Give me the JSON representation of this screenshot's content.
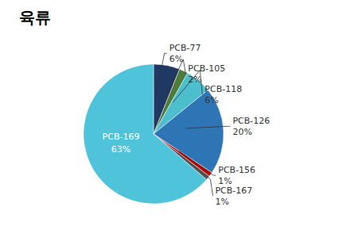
{
  "chart_data": {
    "type": "pie",
    "title": "육류",
    "categories": [
      "PCB-77",
      "PCB-105",
      "PCB-118",
      "PCB-126",
      "PCB-156",
      "PCB-167",
      "PCB-169"
    ],
    "values": [
      6,
      2,
      6,
      20,
      1,
      1,
      63
    ],
    "value_labels": [
      "6%",
      "2%",
      "6%",
      "20%",
      "1%",
      "1%",
      "63%"
    ],
    "colors": [
      "#1F3864",
      "#4E7A3B",
      "#4DBFCC",
      "#2E75B6",
      "#C00000",
      "#595959",
      "#4FC3D9"
    ],
    "data_labels": true
  }
}
